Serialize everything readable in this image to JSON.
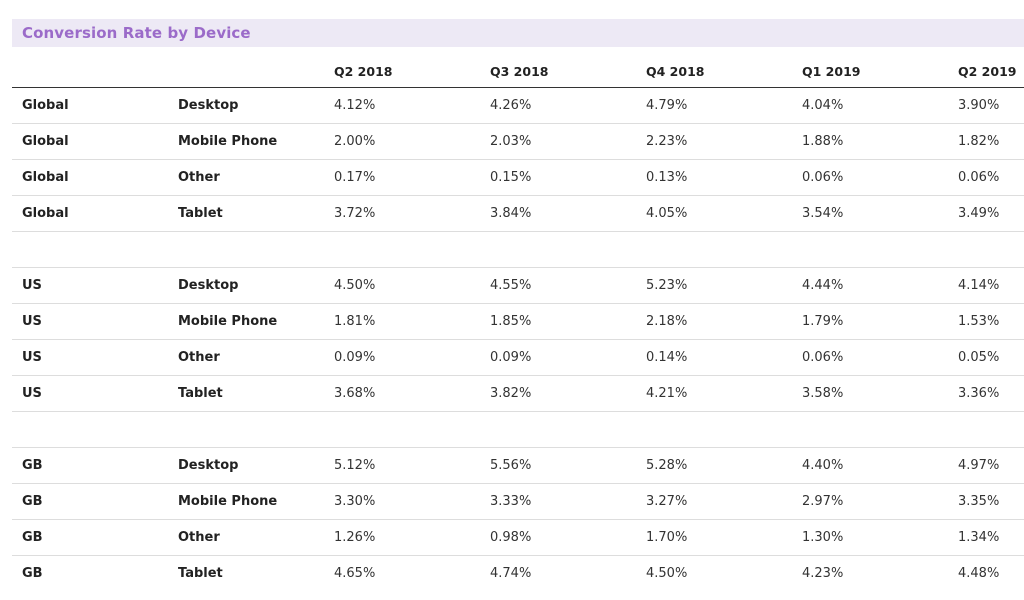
{
  "chart_data": {
    "type": "table",
    "title": "Conversion Rate by Device",
    "columns": [
      "",
      "",
      "Q2 2018",
      "Q3 2018",
      "Q4 2018",
      "Q1 2019",
      "Q2 2019"
    ],
    "groups": [
      {
        "region": "Global",
        "rows": [
          {
            "region": "Global",
            "device": "Desktop",
            "values": [
              "4.12%",
              "4.26%",
              "4.79%",
              "4.04%",
              "3.90%"
            ]
          },
          {
            "region": "Global",
            "device": "Mobile Phone",
            "values": [
              "2.00%",
              "2.03%",
              "2.23%",
              "1.88%",
              "1.82%"
            ]
          },
          {
            "region": "Global",
            "device": "Other",
            "values": [
              "0.17%",
              "0.15%",
              "0.13%",
              "0.06%",
              "0.06%"
            ]
          },
          {
            "region": "Global",
            "device": "Tablet",
            "values": [
              "3.72%",
              "3.84%",
              "4.05%",
              "3.54%",
              "3.49%"
            ]
          }
        ]
      },
      {
        "region": "US",
        "rows": [
          {
            "region": "US",
            "device": "Desktop",
            "values": [
              "4.50%",
              "4.55%",
              "5.23%",
              "4.44%",
              "4.14%"
            ]
          },
          {
            "region": "US",
            "device": "Mobile Phone",
            "values": [
              "1.81%",
              "1.85%",
              "2.18%",
              "1.79%",
              "1.53%"
            ]
          },
          {
            "region": "US",
            "device": "Other",
            "values": [
              "0.09%",
              "0.09%",
              "0.14%",
              "0.06%",
              "0.05%"
            ]
          },
          {
            "region": "US",
            "device": "Tablet",
            "values": [
              "3.68%",
              "3.82%",
              "4.21%",
              "3.58%",
              "3.36%"
            ]
          }
        ]
      },
      {
        "region": "GB",
        "rows": [
          {
            "region": "GB",
            "device": "Desktop",
            "values": [
              "5.12%",
              "5.56%",
              "5.28%",
              "4.40%",
              "4.97%"
            ]
          },
          {
            "region": "GB",
            "device": "Mobile Phone",
            "values": [
              "3.30%",
              "3.33%",
              "3.27%",
              "2.97%",
              "3.35%"
            ]
          },
          {
            "region": "GB",
            "device": "Other",
            "values": [
              "1.26%",
              "0.98%",
              "1.70%",
              "1.30%",
              "1.34%"
            ]
          },
          {
            "region": "GB",
            "device": "Tablet",
            "values": [
              "4.65%",
              "4.74%",
              "4.50%",
              "4.23%",
              "4.48%"
            ]
          }
        ]
      }
    ],
    "colors": {
      "title": "#9b6bc9",
      "title_bg": "#ede9f5"
    }
  }
}
